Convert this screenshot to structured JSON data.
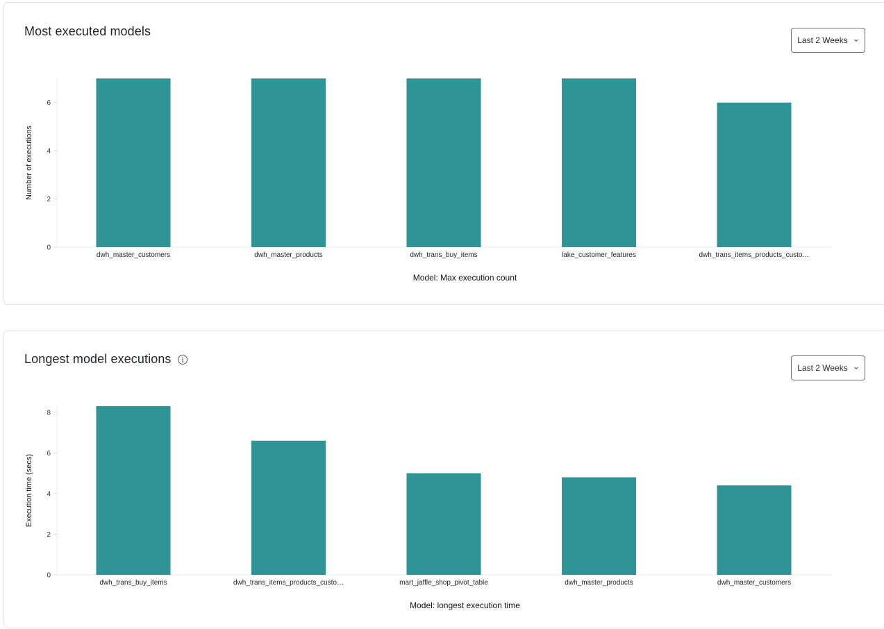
{
  "cards": [
    {
      "title": "Most executed models",
      "dropdown": "Last 2 Weeks",
      "chart_data": {
        "type": "bar",
        "categories": [
          "dwh_master_customers",
          "dwh_master_products",
          "dwh_trans_buy_items",
          "lake_customer_features",
          "dwh_trans_items_products_custo…"
        ],
        "values": [
          7,
          7,
          7,
          7,
          6
        ],
        "xlabel": "Model: Max execution count",
        "ylabel": "Number of executions",
        "yticks": [
          0,
          2,
          4,
          6
        ],
        "ylim": [
          0,
          7
        ],
        "grid": false,
        "bar_color": "#2e9496"
      }
    },
    {
      "title": "Longest model executions",
      "dropdown": "Last 2 Weeks",
      "has_info_icon": true,
      "chart_data": {
        "type": "bar",
        "categories": [
          "dwh_trans_buy_items",
          "dwh_trans_items_products_custo…",
          "mart_jaffle_shop_pivot_table",
          "dwh_master_products",
          "dwh_master_customers"
        ],
        "values": [
          8.3,
          6.6,
          5.0,
          4.8,
          4.4
        ],
        "xlabel": "Model: longest execution time",
        "ylabel": "Execution time (secs)",
        "yticks": [
          0,
          2,
          4,
          6,
          8
        ],
        "ylim": [
          0,
          8.3
        ],
        "grid": false,
        "bar_color": "#2e9496"
      }
    }
  ]
}
